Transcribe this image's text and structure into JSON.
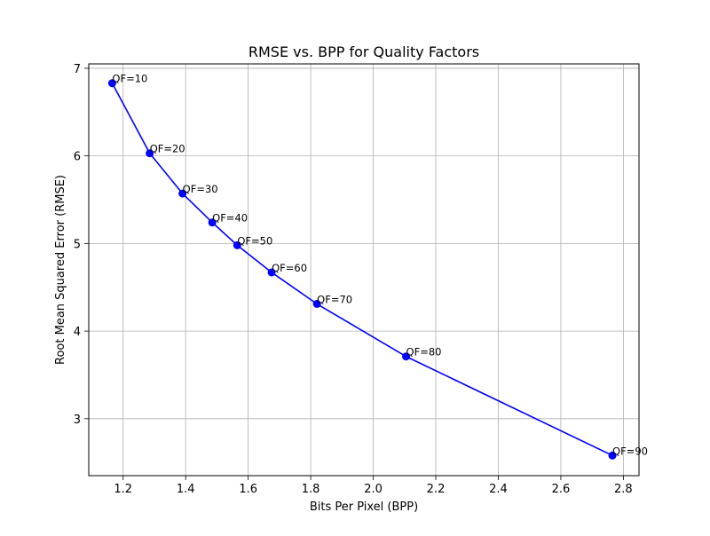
{
  "chart_data": {
    "type": "line",
    "title": "RMSE vs. BPP for Quality Factors",
    "xlabel": "Bits Per Pixel (BPP)",
    "ylabel": "Root Mean Squared Error (RMSE)",
    "xlim": [
      1.09,
      2.85
    ],
    "ylim": [
      2.35,
      7.05
    ],
    "xticks": [
      1.2,
      1.4,
      1.6,
      1.8,
      2.0,
      2.2,
      2.4,
      2.6,
      2.8
    ],
    "yticks": [
      3,
      4,
      5,
      6,
      7
    ],
    "grid": true,
    "series": [
      {
        "color": "#0000ff",
        "marker": "circle",
        "x": [
          1.165,
          1.285,
          1.39,
          1.485,
          1.565,
          1.675,
          1.82,
          2.105,
          2.765
        ],
        "y": [
          6.83,
          6.03,
          5.57,
          5.24,
          4.98,
          4.67,
          4.31,
          3.71,
          2.58
        ],
        "labels": [
          "QF=10",
          "QF=20",
          "QF=30",
          "QF=40",
          "QF=50",
          "QF=60",
          "QF=70",
          "QF=80",
          "QF=90"
        ]
      }
    ]
  }
}
